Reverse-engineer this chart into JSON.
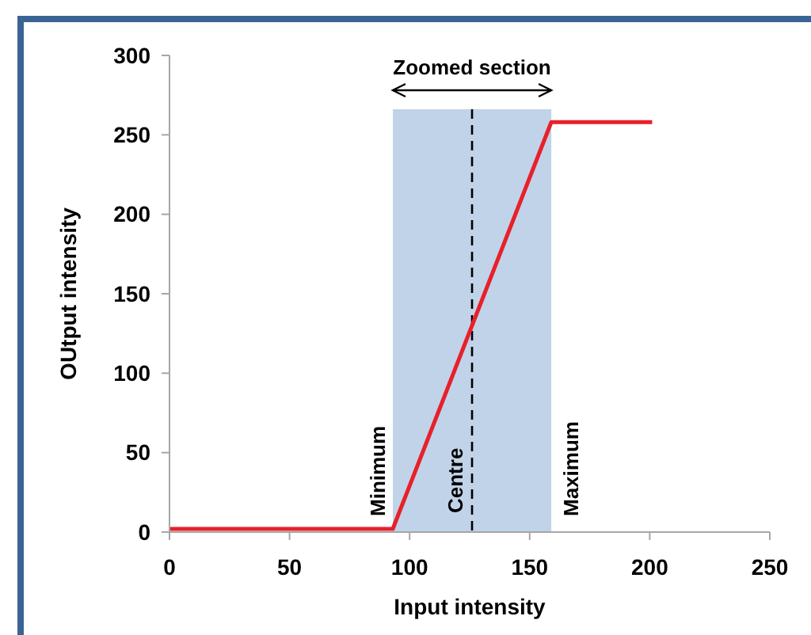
{
  "chart_data": {
    "type": "line",
    "xlabel": "Input intensity",
    "ylabel": "OUtput intensity",
    "x": [
      0,
      93,
      159,
      201
    ],
    "series": [
      {
        "color": "#e8202a",
        "values": [
          2,
          2,
          258,
          258
        ]
      }
    ],
    "xlim": [
      0,
      250
    ],
    "xticks": [
      0,
      50,
      100,
      150,
      200,
      250
    ],
    "ylim": [
      0,
      300
    ],
    "yticks": [
      0,
      50,
      100,
      150,
      200,
      250,
      300
    ],
    "grid": false,
    "marker": "none",
    "line_style": "solid",
    "bands": [
      {
        "axis": "x",
        "from": 93,
        "to": 159,
        "label": "Zoomed section",
        "color": "#c1d3e8"
      }
    ],
    "ref_lines": [
      {
        "axis": "x",
        "value": 126,
        "label": "Centre",
        "color": "#000000",
        "line_style": "dashed"
      }
    ],
    "annotations": [
      {
        "text": "Minimum",
        "x": 93,
        "y": 0
      },
      {
        "text": "Maximum",
        "x": 159,
        "y": 0
      }
    ]
  }
}
